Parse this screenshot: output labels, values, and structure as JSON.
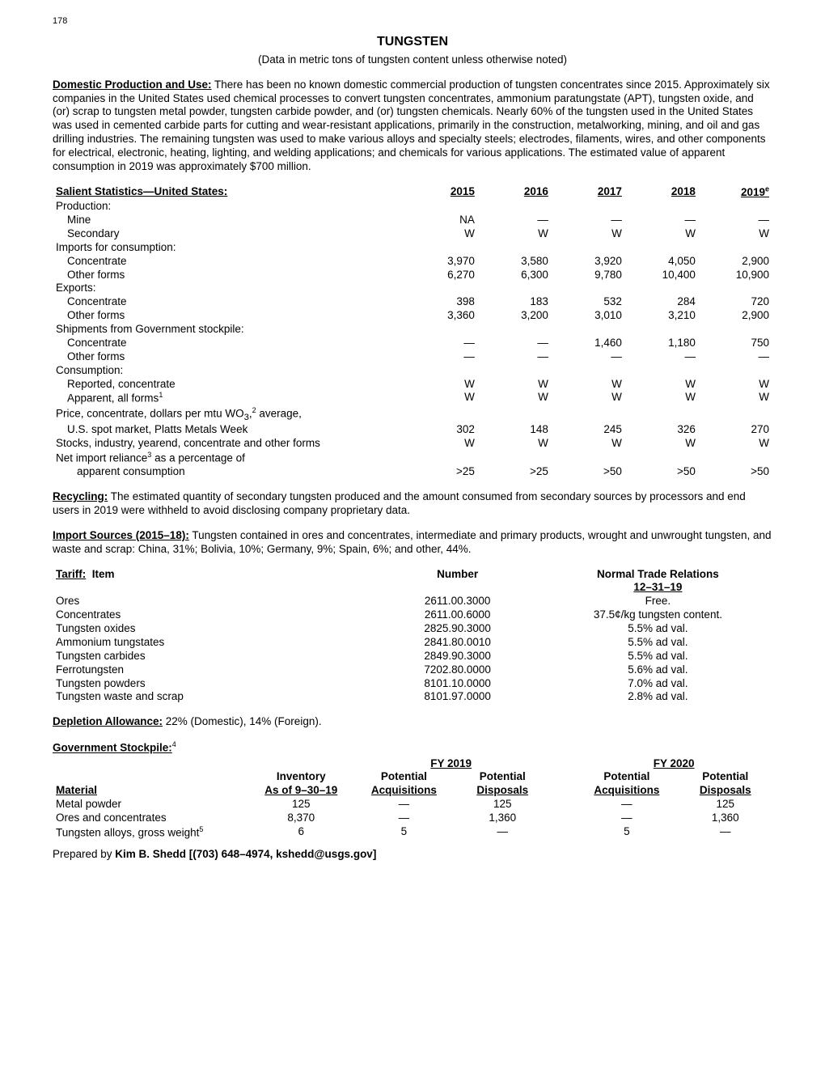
{
  "page_number": "178",
  "title": "TUNGSTEN",
  "subtitle": "(Data in metric tons of tungsten content unless otherwise noted)",
  "domestic": {
    "heading": "Domestic Production and Use:",
    "text": " There has been no known domestic commercial production of tungsten concentrates since 2015. Approximately six companies in the United States used chemical processes to convert tungsten concentrates, ammonium paratungstate (APT), tungsten oxide, and (or) scrap to tungsten metal powder, tungsten carbide powder, and (or) tungsten chemicals. Nearly 60% of the tungsten used in the United States was used in cemented carbide parts for cutting and wear-resistant applications, primarily in the construction, metalworking, mining, and oil and gas drilling industries. The remaining tungsten was used to make various alloys and specialty steels; electrodes, filaments, wires, and other components for electrical, electronic, heating, lighting, and welding applications; and chemicals for various applications. The estimated value of apparent consumption in 2019 was approximately $700 million."
  },
  "stats": {
    "heading": "Salient Statistics—United States:",
    "years": [
      "2015",
      "2016",
      "2017",
      "2018",
      "2019"
    ],
    "year_sup": "e",
    "groups": [
      {
        "label": "Production:",
        "rows": [
          {
            "label": "Mine",
            "vals": [
              "NA",
              "—",
              "—",
              "—",
              "—"
            ]
          },
          {
            "label": "Secondary",
            "vals": [
              "W",
              "W",
              "W",
              "W",
              "W"
            ]
          }
        ]
      },
      {
        "label": "Imports for consumption:",
        "rows": [
          {
            "label": "Concentrate",
            "vals": [
              "3,970",
              "3,580",
              "3,920",
              "4,050",
              "2,900"
            ]
          },
          {
            "label": "Other forms",
            "vals": [
              "6,270",
              "6,300",
              "9,780",
              "10,400",
              "10,900"
            ]
          }
        ]
      },
      {
        "label": "Exports:",
        "rows": [
          {
            "label": "Concentrate",
            "vals": [
              "398",
              "183",
              "532",
              "284",
              "720"
            ]
          },
          {
            "label": "Other forms",
            "vals": [
              "3,360",
              "3,200",
              "3,010",
              "3,210",
              "2,900"
            ]
          }
        ]
      },
      {
        "label": "Shipments from Government stockpile:",
        "rows": [
          {
            "label": "Concentrate",
            "vals": [
              "—",
              "—",
              "1,460",
              "1,180",
              "750"
            ]
          },
          {
            "label": "Other forms",
            "vals": [
              "—",
              "—",
              "—",
              "—",
              "—"
            ]
          }
        ]
      },
      {
        "label": "Consumption:",
        "rows": [
          {
            "label": "Reported, concentrate",
            "vals": [
              "W",
              "W",
              "W",
              "W",
              "W"
            ]
          },
          {
            "label_html": "Apparent, all forms<sup>1</sup>",
            "label": "Apparent, all forms",
            "sup": "1",
            "vals": [
              "W",
              "W",
              "W",
              "W",
              "W"
            ]
          }
        ]
      }
    ],
    "price_label_a": "Price, concentrate, dollars per mtu WO",
    "price_sub": "3",
    "price_comma": ",",
    "price_sup": "2",
    "price_label_b": " average,",
    "price_row": {
      "label": "U.S. spot market, Platts Metals Week",
      "vals": [
        "302",
        "148",
        "245",
        "326",
        "270"
      ]
    },
    "stocks_row": {
      "label": "Stocks, industry, yearend, concentrate and other forms",
      "vals": [
        "W",
        "W",
        "W",
        "W",
        "W"
      ]
    },
    "net_label_a": "Net import reliance",
    "net_sup": "3",
    "net_label_b": " as a percentage of",
    "net_row": {
      "label": "apparent consumption",
      "vals": [
        ">25",
        ">25",
        ">50",
        ">50",
        ">50"
      ]
    }
  },
  "recycling": {
    "heading": "Recycling:",
    "text": " The estimated quantity of secondary tungsten produced and the amount consumed from secondary sources by processors and end users in 2019 were withheld to avoid disclosing company proprietary data."
  },
  "import_sources": {
    "heading": "Import Sources (2015–18):",
    "text": " Tungsten contained in ores and concentrates, intermediate and primary products, wrought and unwrought tungsten, and waste and scrap: China, 31%; Bolivia, 10%; Germany, 9%; Spain, 6%; and other, 44%."
  },
  "tariff": {
    "heading": "Tariff:",
    "col_item": "Item",
    "col_number": "Number",
    "col_ntr": "Normal Trade Relations",
    "col_date": "12–31–19",
    "rows": [
      {
        "item": "Ores",
        "number": "2611.00.3000",
        "ntr": "Free."
      },
      {
        "item": "Concentrates",
        "number": "2611.00.6000",
        "ntr": "37.5¢/kg tungsten content."
      },
      {
        "item": "Tungsten oxides",
        "number": "2825.90.3000",
        "ntr": "5.5% ad val."
      },
      {
        "item": "Ammonium tungstates",
        "number": "2841.80.0010",
        "ntr": "5.5% ad val."
      },
      {
        "item": "Tungsten carbides",
        "number": "2849.90.3000",
        "ntr": "5.5% ad val."
      },
      {
        "item": "Ferrotungsten",
        "number": "7202.80.0000",
        "ntr": "5.6% ad val."
      },
      {
        "item": "Tungsten powders",
        "number": "8101.10.0000",
        "ntr": "7.0% ad val."
      },
      {
        "item": "Tungsten waste and scrap",
        "number": "8101.97.0000",
        "ntr": "2.8% ad val."
      }
    ]
  },
  "depletion": {
    "heading": "Depletion Allowance:",
    "text": " 22% (Domestic), 14% (Foreign)."
  },
  "stockpile": {
    "heading": "Government Stockpile:",
    "sup": "4",
    "col_fy19": "FY 2019",
    "col_fy20": "FY 2020",
    "col_material": "Material",
    "col_inventory": "Inventory",
    "col_asof": "As of 9–30–19",
    "col_pot_acq": "Potential",
    "col_acq": "Acquisitions",
    "col_pot_disp": "Potential",
    "col_disp": "Disposals",
    "rows": [
      {
        "mat": "Metal powder",
        "inv": "125",
        "a19": "—",
        "d19": "125",
        "a20": "—",
        "d20": "125"
      },
      {
        "mat": "Ores and concentrates",
        "inv": "8,370",
        "a19": "—",
        "d19": "1,360",
        "a20": "—",
        "d20": "1,360"
      },
      {
        "mat": "Tungsten alloys, gross weight",
        "sup": "5",
        "inv": "6",
        "a19": "5",
        "d19": "—",
        "a20": "5",
        "d20": "—"
      }
    ]
  },
  "prepared": {
    "prefix": "Prepared by ",
    "name": "Kim B. Shedd [(703) 648–4974, kshedd@usgs.gov]"
  }
}
